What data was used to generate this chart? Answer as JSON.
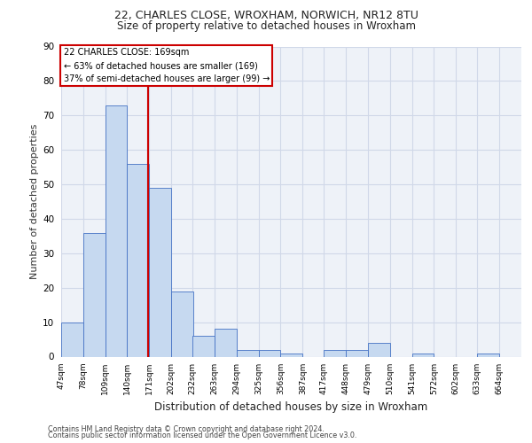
{
  "title1": "22, CHARLES CLOSE, WROXHAM, NORWICH, NR12 8TU",
  "title2": "Size of property relative to detached houses in Wroxham",
  "xlabel": "Distribution of detached houses by size in Wroxham",
  "ylabel": "Number of detached properties",
  "bin_edges": [
    47,
    78,
    109,
    140,
    171,
    202,
    232,
    263,
    294,
    325,
    356,
    387,
    417,
    448,
    479,
    510,
    541,
    572,
    602,
    633,
    664,
    695
  ],
  "bin_labels": [
    "47sqm",
    "78sqm",
    "109sqm",
    "140sqm",
    "171sqm",
    "202sqm",
    "232sqm",
    "263sqm",
    "294sqm",
    "325sqm",
    "356sqm",
    "387sqm",
    "417sqm",
    "448sqm",
    "479sqm",
    "510sqm",
    "541sqm",
    "572sqm",
    "602sqm",
    "633sqm",
    "664sqm"
  ],
  "bar_heights": [
    10,
    36,
    73,
    56,
    49,
    19,
    6,
    8,
    2,
    2,
    1,
    0,
    2,
    2,
    4,
    0,
    1,
    0,
    0,
    1,
    0
  ],
  "bar_color": "#c6d9f0",
  "bar_edge_color": "#4472c4",
  "vline_x": 169,
  "vline_color": "#cc0000",
  "annotation_line1": "22 CHARLES CLOSE: 169sqm",
  "annotation_line2": "← 63% of detached houses are smaller (169)",
  "annotation_line3": "37% of semi-detached houses are larger (99) →",
  "annotation_box_color": "#cc0000",
  "ylim": [
    0,
    90
  ],
  "yticks": [
    0,
    10,
    20,
    30,
    40,
    50,
    60,
    70,
    80,
    90
  ],
  "grid_color": "#d0d8e8",
  "background_color": "#eef2f8",
  "footer_line1": "Contains HM Land Registry data © Crown copyright and database right 2024.",
  "footer_line2": "Contains public sector information licensed under the Open Government Licence v3.0."
}
